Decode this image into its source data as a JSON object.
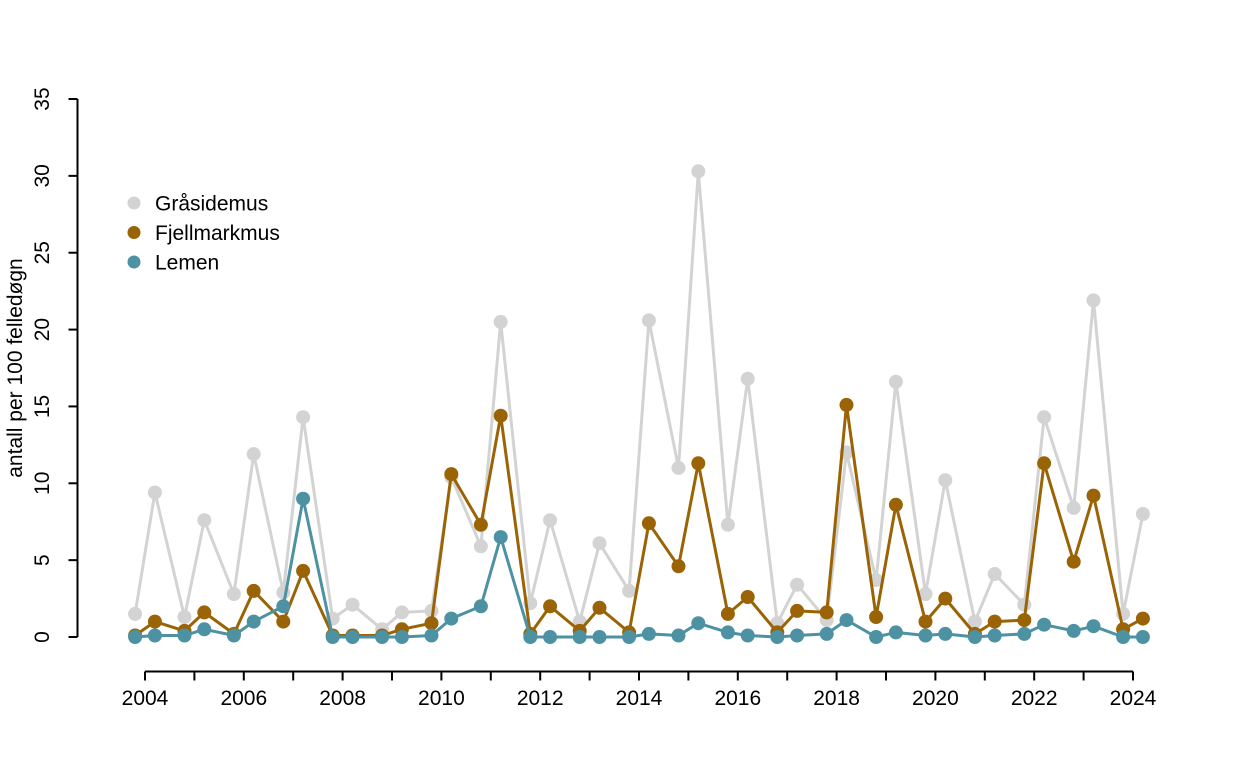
{
  "chart_data": {
    "type": "line",
    "title": "",
    "xlabel": "",
    "ylabel": "antall per 100 felledøgn",
    "ylim": [
      0,
      35
    ],
    "y_ticks": [
      0,
      5,
      10,
      15,
      20,
      25,
      30,
      35
    ],
    "x_ticks": [
      2004,
      2005,
      2006,
      2007,
      2008,
      2009,
      2010,
      2011,
      2012,
      2013,
      2014,
      2015,
      2016,
      2017,
      2018,
      2019,
      2020,
      2021,
      2022,
      2023,
      2024
    ],
    "x_tick_labels": [
      "2004",
      "2006",
      "2008",
      "2010",
      "2012",
      "2014",
      "2016",
      "2018",
      "2020",
      "2022",
      "2024"
    ],
    "grid": "off",
    "legend_position": "top-left",
    "marker": "filled-circle",
    "x": [
      2003.8,
      2004.2,
      2004.8,
      2005.2,
      2005.8,
      2006.2,
      2006.8,
      2007.2,
      2007.8,
      2008.2,
      2008.8,
      2009.2,
      2009.8,
      2010.2,
      2010.8,
      2011.2,
      2011.8,
      2012.2,
      2012.8,
      2013.2,
      2013.8,
      2014.2,
      2014.8,
      2015.2,
      2015.8,
      2016.2,
      2016.8,
      2017.2,
      2017.8,
      2018.2,
      2018.8,
      2019.2,
      2019.8,
      2020.2,
      2020.8,
      2021.2,
      2021.8,
      2022.2,
      2022.8,
      2023.2,
      2023.8,
      2024.2
    ],
    "series": [
      {
        "name": "Gråsidemus",
        "color": "#d3d3d3",
        "values": [
          1.5,
          9.4,
          1.3,
          7.6,
          2.8,
          11.9,
          2.9,
          14.3,
          1.2,
          2.1,
          0.5,
          1.6,
          1.7,
          10.4,
          5.9,
          20.5,
          2.2,
          7.6,
          1.0,
          6.1,
          3.0,
          20.6,
          11.0,
          30.3,
          7.3,
          16.8,
          0.9,
          3.4,
          1.1,
          12.0,
          3.7,
          16.6,
          2.8,
          10.2,
          1.0,
          4.1,
          2.1,
          14.3,
          8.4,
          21.9,
          1.5,
          8.0
        ]
      },
      {
        "name": "Fjellmarkmus",
        "color": "#9a6305",
        "values": [
          0.1,
          1.0,
          0.4,
          1.6,
          0.2,
          3.0,
          1.0,
          4.3,
          0.1,
          0.1,
          0.1,
          0.5,
          0.9,
          10.6,
          7.3,
          14.4,
          0.2,
          2.0,
          0.4,
          1.9,
          0.3,
          7.4,
          4.6,
          11.3,
          1.5,
          2.6,
          0.3,
          1.7,
          1.6,
          15.1,
          1.3,
          8.6,
          1.0,
          2.5,
          0.2,
          1.0,
          1.1,
          11.3,
          4.9,
          9.2,
          0.5,
          1.2
        ]
      },
      {
        "name": "Lemen",
        "color": "#4d92a3",
        "values": [
          0,
          0.1,
          0.1,
          0.5,
          0.1,
          1.0,
          2.0,
          9.0,
          0,
          0,
          0,
          0,
          0.1,
          1.2,
          2.0,
          6.5,
          0,
          0,
          0,
          0,
          0,
          0.2,
          0.1,
          0.9,
          0.3,
          0.1,
          0,
          0.1,
          0.2,
          1.1,
          0,
          0.3,
          0.1,
          0.2,
          0,
          0.1,
          0.2,
          0.8,
          0.4,
          0.7,
          0,
          0
        ]
      }
    ]
  }
}
